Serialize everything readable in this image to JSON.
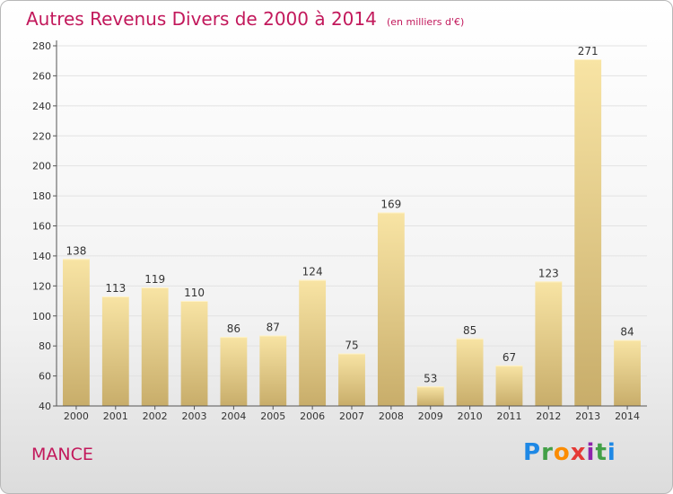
{
  "title": "Autres Revenus Divers de 2000 à 2014",
  "unit": "(en milliers d'€)",
  "location": "MANCE",
  "logo": {
    "text": "Proxiti"
  },
  "colors": {
    "title": "#c2185b",
    "bar_light": "#f8e4a4",
    "bar_dark": "#c8ad6a",
    "grid": "#e2e2e2",
    "axis": "#555555"
  },
  "chart_data": {
    "type": "bar",
    "categories": [
      "2000",
      "2001",
      "2002",
      "2003",
      "2004",
      "2005",
      "2006",
      "2007",
      "2008",
      "2009",
      "2010",
      "2011",
      "2012",
      "2013",
      "2014"
    ],
    "values": [
      138,
      113,
      119,
      110,
      86,
      87,
      124,
      75,
      169,
      53,
      85,
      67,
      123,
      271,
      84
    ],
    "ylim": [
      40,
      280
    ],
    "yticks": [
      40,
      60,
      80,
      100,
      120,
      140,
      160,
      180,
      200,
      220,
      240,
      260,
      280
    ],
    "grid": true,
    "data_labels": true
  }
}
